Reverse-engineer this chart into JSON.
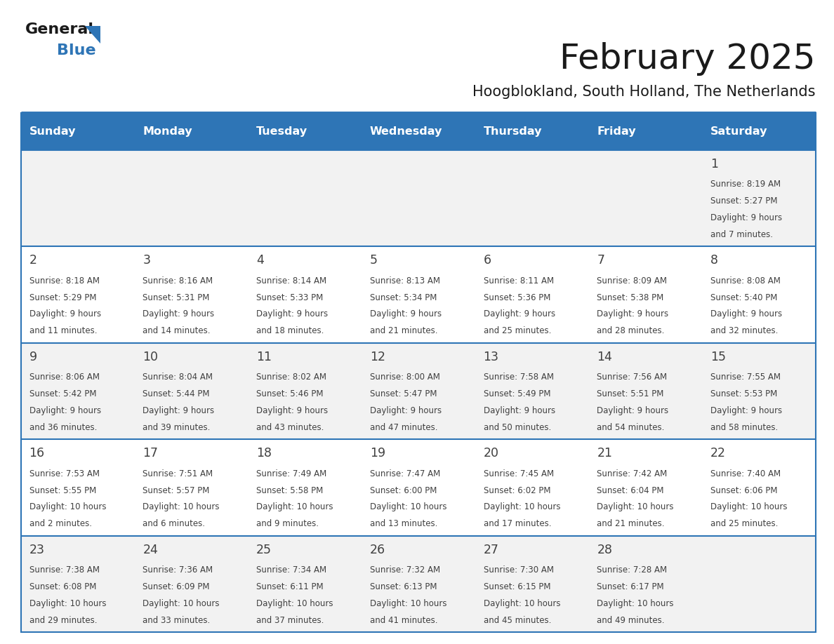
{
  "title": "February 2025",
  "subtitle": "Hoogblokland, South Holland, The Netherlands",
  "header_bg": "#2E75B6",
  "header_text_color": "#FFFFFF",
  "cell_bg_odd": "#F2F2F2",
  "cell_bg_even": "#FFFFFF",
  "separator_color": "#2E75B6",
  "text_color": "#404040",
  "day_num_color": "#404040",
  "day_headers": [
    "Sunday",
    "Monday",
    "Tuesday",
    "Wednesday",
    "Thursday",
    "Friday",
    "Saturday"
  ],
  "days_data": [
    {
      "day": 1,
      "col": 6,
      "row": 0,
      "sunrise": "8:19 AM",
      "sunset": "5:27 PM",
      "daylight_line1": "Daylight: 9 hours",
      "daylight_line2": "and 7 minutes."
    },
    {
      "day": 2,
      "col": 0,
      "row": 1,
      "sunrise": "8:18 AM",
      "sunset": "5:29 PM",
      "daylight_line1": "Daylight: 9 hours",
      "daylight_line2": "and 11 minutes."
    },
    {
      "day": 3,
      "col": 1,
      "row": 1,
      "sunrise": "8:16 AM",
      "sunset": "5:31 PM",
      "daylight_line1": "Daylight: 9 hours",
      "daylight_line2": "and 14 minutes."
    },
    {
      "day": 4,
      "col": 2,
      "row": 1,
      "sunrise": "8:14 AM",
      "sunset": "5:33 PM",
      "daylight_line1": "Daylight: 9 hours",
      "daylight_line2": "and 18 minutes."
    },
    {
      "day": 5,
      "col": 3,
      "row": 1,
      "sunrise": "8:13 AM",
      "sunset": "5:34 PM",
      "daylight_line1": "Daylight: 9 hours",
      "daylight_line2": "and 21 minutes."
    },
    {
      "day": 6,
      "col": 4,
      "row": 1,
      "sunrise": "8:11 AM",
      "sunset": "5:36 PM",
      "daylight_line1": "Daylight: 9 hours",
      "daylight_line2": "and 25 minutes."
    },
    {
      "day": 7,
      "col": 5,
      "row": 1,
      "sunrise": "8:09 AM",
      "sunset": "5:38 PM",
      "daylight_line1": "Daylight: 9 hours",
      "daylight_line2": "and 28 minutes."
    },
    {
      "day": 8,
      "col": 6,
      "row": 1,
      "sunrise": "8:08 AM",
      "sunset": "5:40 PM",
      "daylight_line1": "Daylight: 9 hours",
      "daylight_line2": "and 32 minutes."
    },
    {
      "day": 9,
      "col": 0,
      "row": 2,
      "sunrise": "8:06 AM",
      "sunset": "5:42 PM",
      "daylight_line1": "Daylight: 9 hours",
      "daylight_line2": "and 36 minutes."
    },
    {
      "day": 10,
      "col": 1,
      "row": 2,
      "sunrise": "8:04 AM",
      "sunset": "5:44 PM",
      "daylight_line1": "Daylight: 9 hours",
      "daylight_line2": "and 39 minutes."
    },
    {
      "day": 11,
      "col": 2,
      "row": 2,
      "sunrise": "8:02 AM",
      "sunset": "5:46 PM",
      "daylight_line1": "Daylight: 9 hours",
      "daylight_line2": "and 43 minutes."
    },
    {
      "day": 12,
      "col": 3,
      "row": 2,
      "sunrise": "8:00 AM",
      "sunset": "5:47 PM",
      "daylight_line1": "Daylight: 9 hours",
      "daylight_line2": "and 47 minutes."
    },
    {
      "day": 13,
      "col": 4,
      "row": 2,
      "sunrise": "7:58 AM",
      "sunset": "5:49 PM",
      "daylight_line1": "Daylight: 9 hours",
      "daylight_line2": "and 50 minutes."
    },
    {
      "day": 14,
      "col": 5,
      "row": 2,
      "sunrise": "7:56 AM",
      "sunset": "5:51 PM",
      "daylight_line1": "Daylight: 9 hours",
      "daylight_line2": "and 54 minutes."
    },
    {
      "day": 15,
      "col": 6,
      "row": 2,
      "sunrise": "7:55 AM",
      "sunset": "5:53 PM",
      "daylight_line1": "Daylight: 9 hours",
      "daylight_line2": "and 58 minutes."
    },
    {
      "day": 16,
      "col": 0,
      "row": 3,
      "sunrise": "7:53 AM",
      "sunset": "5:55 PM",
      "daylight_line1": "Daylight: 10 hours",
      "daylight_line2": "and 2 minutes."
    },
    {
      "day": 17,
      "col": 1,
      "row": 3,
      "sunrise": "7:51 AM",
      "sunset": "5:57 PM",
      "daylight_line1": "Daylight: 10 hours",
      "daylight_line2": "and 6 minutes."
    },
    {
      "day": 18,
      "col": 2,
      "row": 3,
      "sunrise": "7:49 AM",
      "sunset": "5:58 PM",
      "daylight_line1": "Daylight: 10 hours",
      "daylight_line2": "and 9 minutes."
    },
    {
      "day": 19,
      "col": 3,
      "row": 3,
      "sunrise": "7:47 AM",
      "sunset": "6:00 PM",
      "daylight_line1": "Daylight: 10 hours",
      "daylight_line2": "and 13 minutes."
    },
    {
      "day": 20,
      "col": 4,
      "row": 3,
      "sunrise": "7:45 AM",
      "sunset": "6:02 PM",
      "daylight_line1": "Daylight: 10 hours",
      "daylight_line2": "and 17 minutes."
    },
    {
      "day": 21,
      "col": 5,
      "row": 3,
      "sunrise": "7:42 AM",
      "sunset": "6:04 PM",
      "daylight_line1": "Daylight: 10 hours",
      "daylight_line2": "and 21 minutes."
    },
    {
      "day": 22,
      "col": 6,
      "row": 3,
      "sunrise": "7:40 AM",
      "sunset": "6:06 PM",
      "daylight_line1": "Daylight: 10 hours",
      "daylight_line2": "and 25 minutes."
    },
    {
      "day": 23,
      "col": 0,
      "row": 4,
      "sunrise": "7:38 AM",
      "sunset": "6:08 PM",
      "daylight_line1": "Daylight: 10 hours",
      "daylight_line2": "and 29 minutes."
    },
    {
      "day": 24,
      "col": 1,
      "row": 4,
      "sunrise": "7:36 AM",
      "sunset": "6:09 PM",
      "daylight_line1": "Daylight: 10 hours",
      "daylight_line2": "and 33 minutes."
    },
    {
      "day": 25,
      "col": 2,
      "row": 4,
      "sunrise": "7:34 AM",
      "sunset": "6:11 PM",
      "daylight_line1": "Daylight: 10 hours",
      "daylight_line2": "and 37 minutes."
    },
    {
      "day": 26,
      "col": 3,
      "row": 4,
      "sunrise": "7:32 AM",
      "sunset": "6:13 PM",
      "daylight_line1": "Daylight: 10 hours",
      "daylight_line2": "and 41 minutes."
    },
    {
      "day": 27,
      "col": 4,
      "row": 4,
      "sunrise": "7:30 AM",
      "sunset": "6:15 PM",
      "daylight_line1": "Daylight: 10 hours",
      "daylight_line2": "and 45 minutes."
    },
    {
      "day": 28,
      "col": 5,
      "row": 4,
      "sunrise": "7:28 AM",
      "sunset": "6:17 PM",
      "daylight_line1": "Daylight: 10 hours",
      "daylight_line2": "and 49 minutes."
    }
  ],
  "num_rows": 5,
  "num_cols": 7,
  "fig_width": 11.88,
  "fig_height": 9.18
}
